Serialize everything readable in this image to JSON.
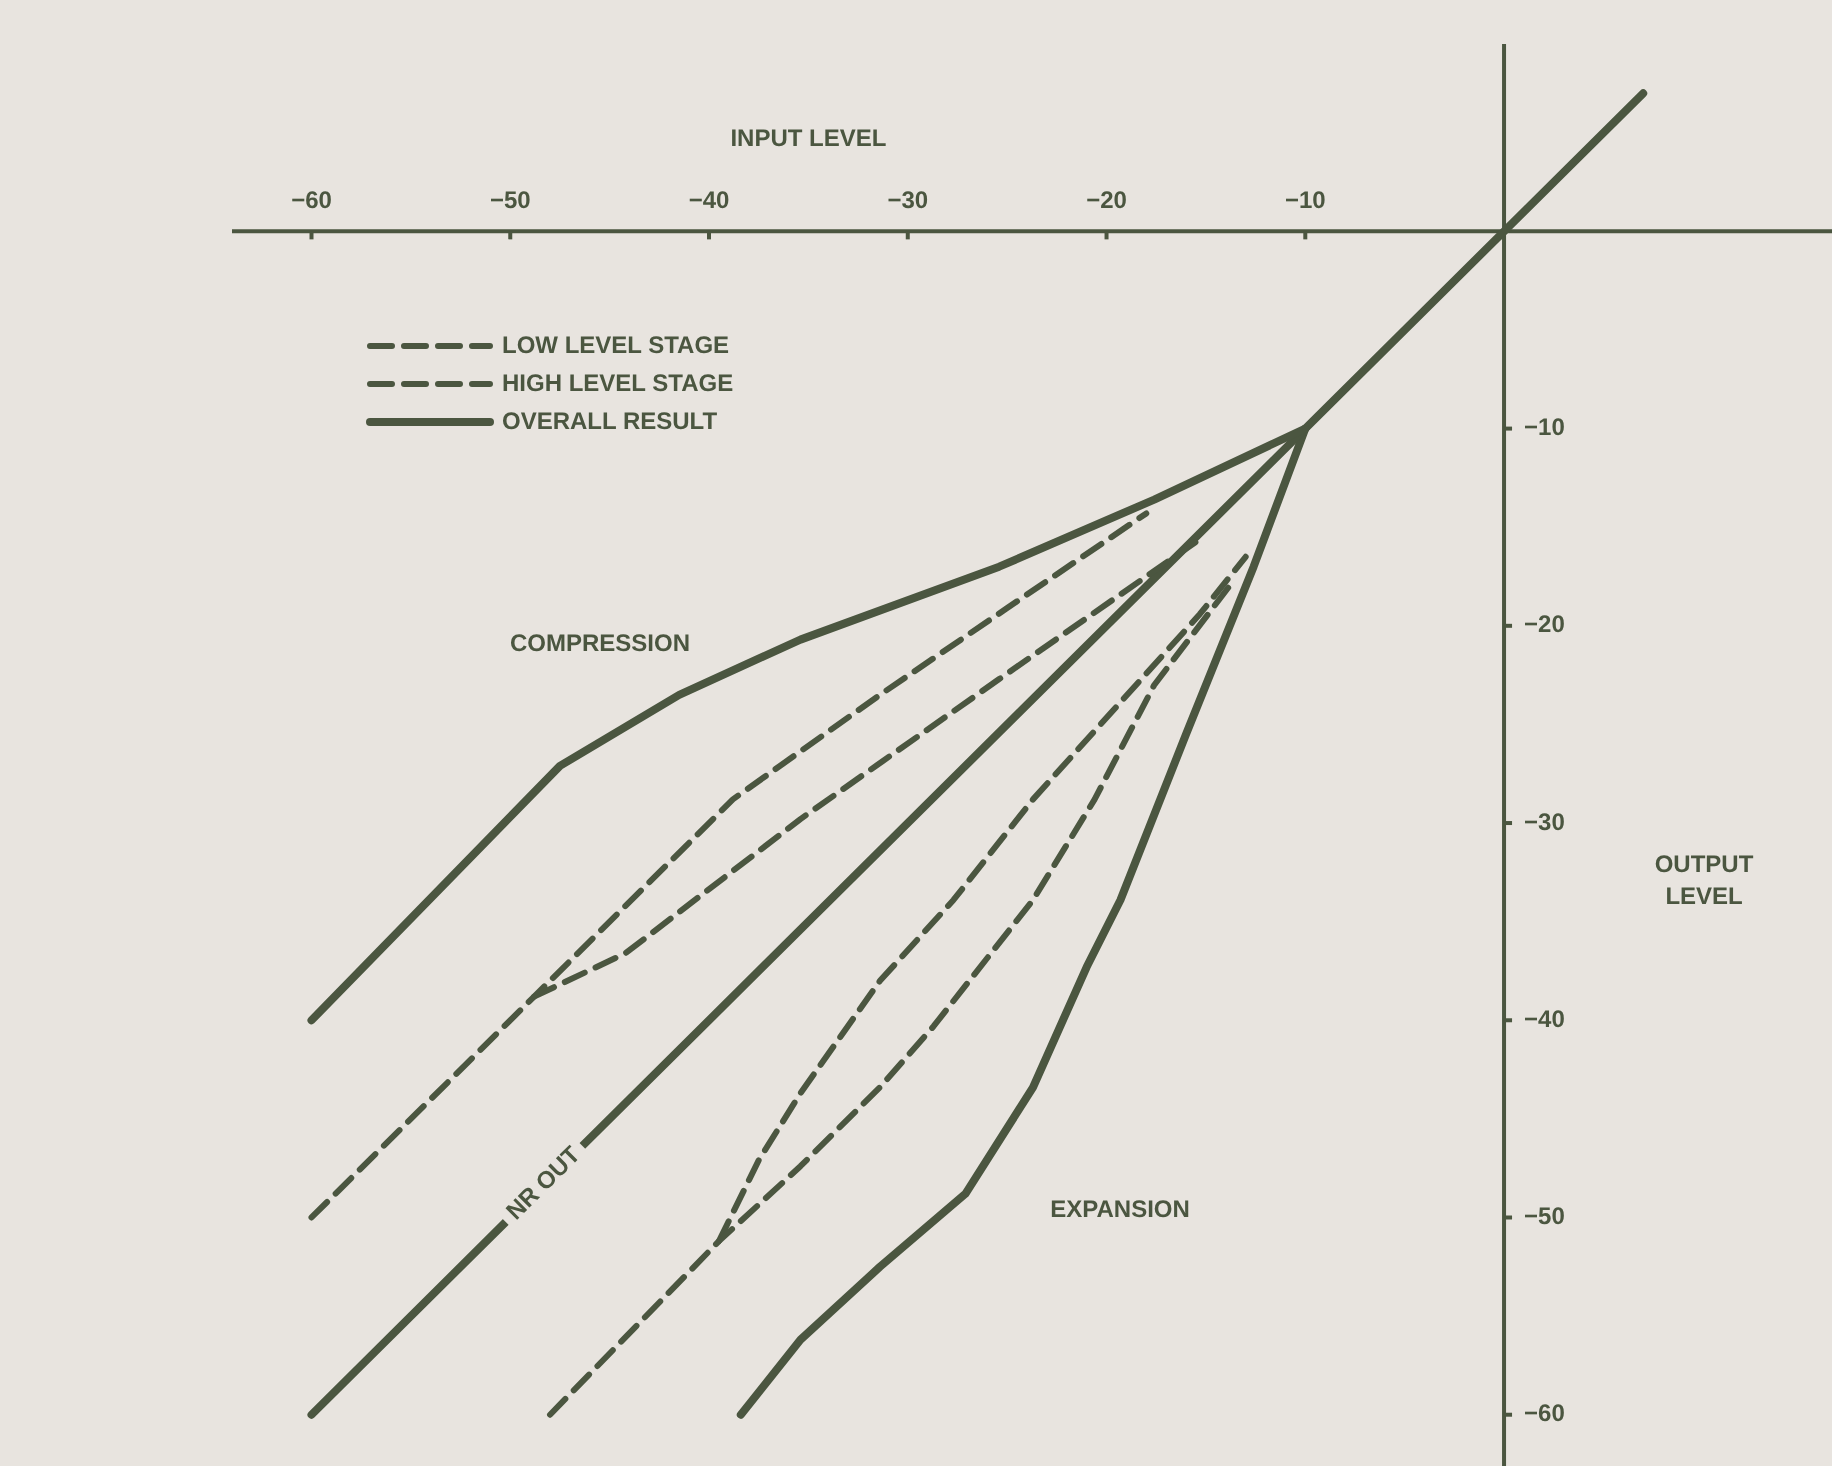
{
  "chart_data": {
    "type": "line",
    "xlabel": "INPUT LEVEL",
    "ylabel": "OUTPUT LEVEL",
    "xlim": [
      -64,
      16.5
    ],
    "ylim": [
      -62.6,
      9.5
    ],
    "xticks": [
      -60,
      -50,
      -40,
      -30,
      -20,
      -10
    ],
    "yticks": [
      -60,
      -50,
      -40,
      -30,
      -20,
      -10
    ],
    "grid": false,
    "legend": "top left",
    "marker": "none",
    "annotations": [
      "COMPRESSION",
      "EXPANSION",
      {
        "text": "NR OUT",
        "x": -48.3,
        "y": -48.3
      }
    ],
    "series": [
      {
        "name": "LOW LEVEL STAGE",
        "color": "#4b5640",
        "line_style": "dashed",
        "x": [
          -60,
          -48.8,
          -38.8,
          -31.4,
          -25,
          -18
        ],
        "values": [
          -50,
          -38.8,
          -28.8,
          -23.5,
          -19.1,
          -14.3
        ]
      },
      {
        "name": "HIGH LEVEL STAGE",
        "color": "#4b5640",
        "line_style": "dashed",
        "x": [
          -48.8,
          -44.2,
          -35.4,
          -25.4,
          -15.3
        ],
        "values": [
          -38.8,
          -36.6,
          -29.8,
          -22.7,
          -15.6
        ]
      },
      {
        "name": "OVERALL RESULT",
        "color": "#4b5640",
        "line_style": "solid",
        "x": [
          -60,
          -47.5,
          -41.5,
          -35.4,
          -25.4,
          -17.6,
          -10
        ],
        "values": [
          -40,
          -27.1,
          -23.5,
          -20.7,
          -17,
          -13.6,
          -10
        ]
      },
      {
        "color": "#4b5640",
        "line_style": "solid",
        "x": [
          -60,
          7
        ],
        "values": [
          -60,
          7
        ]
      },
      {
        "color": "#4b5640",
        "line_style": "solid",
        "x": [
          -38.4,
          -35.4,
          -31.4,
          -27.1,
          -23.7,
          -21,
          -19.3,
          -16,
          -12.6,
          -10
        ],
        "values": [
          -60,
          -56.2,
          -52.5,
          -48.8,
          -43.4,
          -37.3,
          -33.9,
          -25.5,
          -17,
          -10
        ]
      },
      {
        "color": "#4b5640",
        "line_style": "dashed",
        "x": [
          -48,
          -39.5,
          -35.4,
          -31.4,
          -28.7,
          -23.7,
          -20.6,
          -17.6,
          -13.6
        ],
        "values": [
          -60,
          -51.2,
          -47.4,
          -43.4,
          -40.3,
          -33.9,
          -28.8,
          -23,
          -17.7
        ]
      },
      {
        "color": "#4b5640",
        "line_style": "dashed",
        "x": [
          -39.5,
          -37.5,
          -35.4,
          -31.4,
          -27.7,
          -23.7,
          -15.3,
          -13
        ],
        "values": [
          -51.2,
          -47.1,
          -43.7,
          -38,
          -33.9,
          -28.8,
          -19.4,
          -16.5
        ]
      }
    ]
  }
}
